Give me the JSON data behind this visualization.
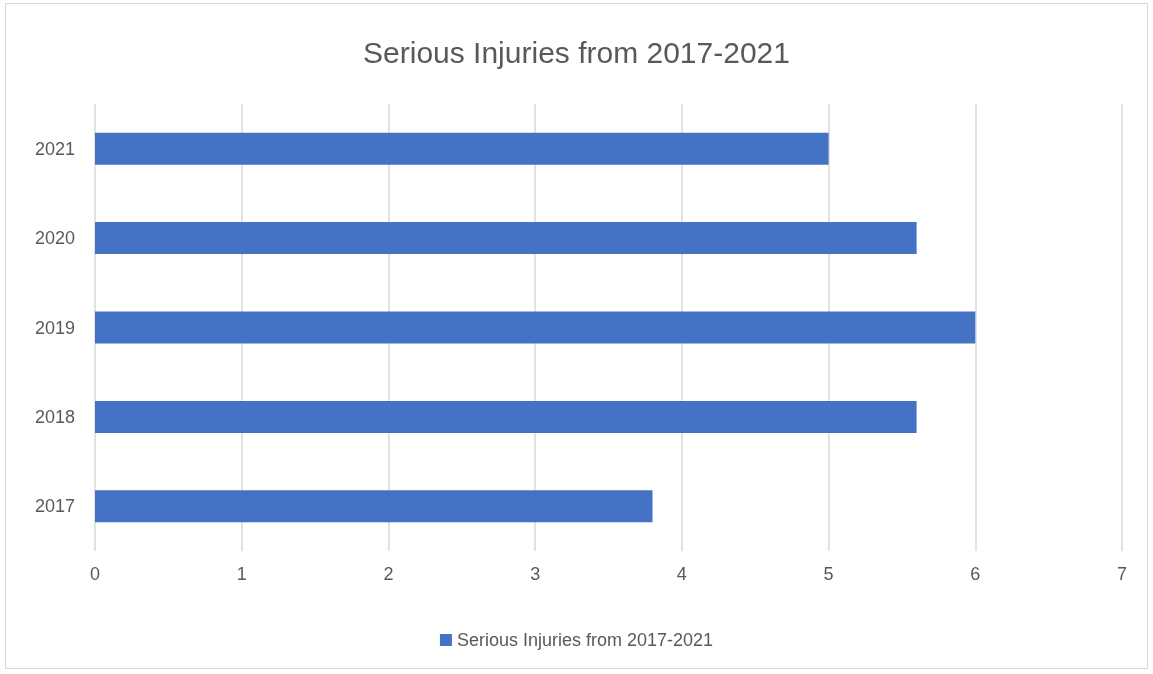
{
  "chart_data": {
    "type": "bar",
    "orientation": "horizontal",
    "title": "Serious Injuries from 2017-2021",
    "categories": [
      "2021",
      "2020",
      "2019",
      "2018",
      "2017"
    ],
    "series": [
      {
        "name": "Serious Injuries from 2017-2021",
        "color": "#4472c4",
        "values": [
          5.0,
          5.6,
          6.0,
          5.6,
          3.8
        ]
      }
    ],
    "xlim": [
      0,
      7
    ],
    "xticks": [
      0,
      1,
      2,
      3,
      4,
      5,
      6,
      7
    ],
    "grid": "x",
    "legend": "bottom"
  }
}
